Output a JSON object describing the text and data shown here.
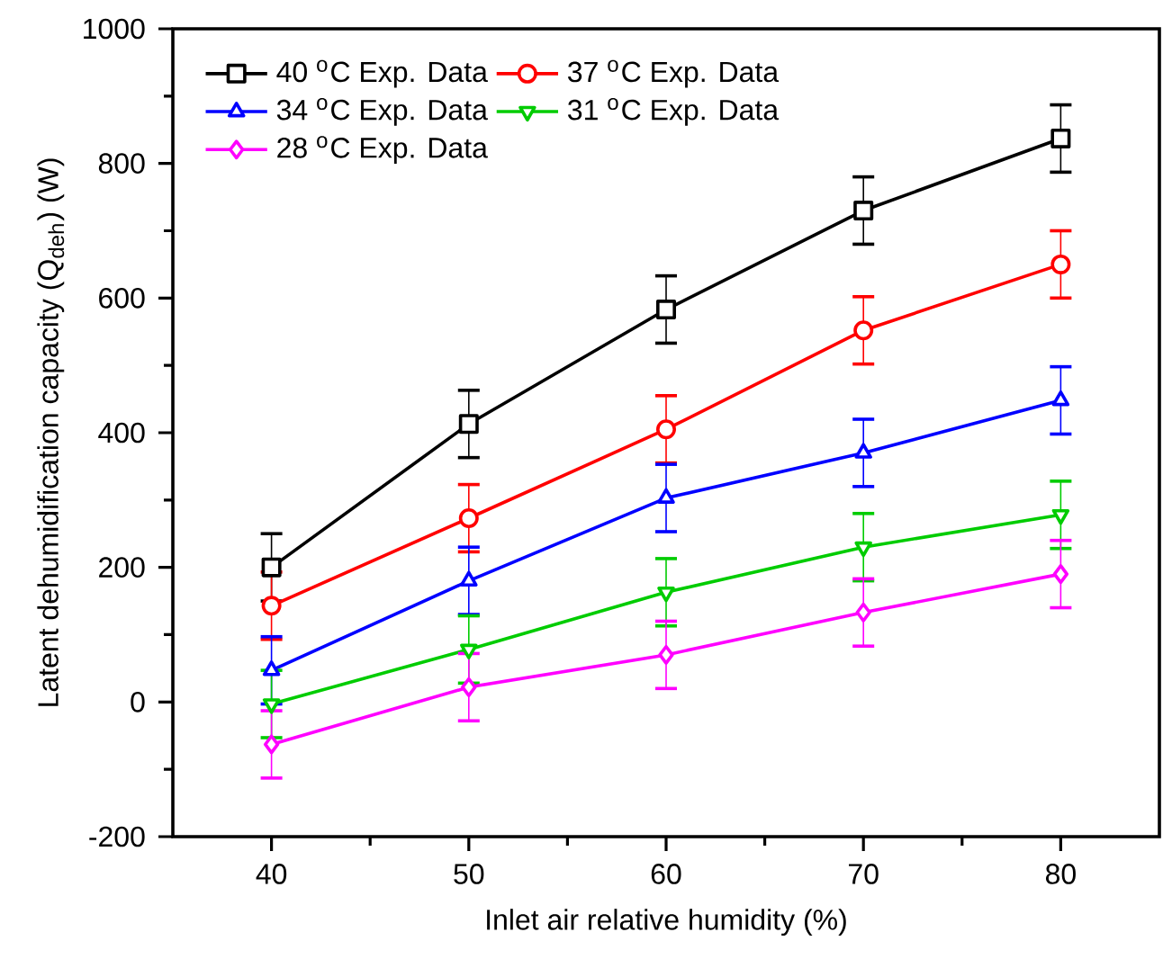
{
  "chart_data": {
    "type": "line",
    "xlabel": "Inlet air relative humidity (%)",
    "ylabel": "Latent dehumidification capacity (Q$_{deh}$) (W)",
    "x": [
      40,
      50,
      60,
      70,
      80
    ],
    "xlim": [
      35,
      85
    ],
    "xticks": [
      40,
      50,
      60,
      70,
      80
    ],
    "ylim": [
      -200,
      1000
    ],
    "yticks": [
      -200,
      0,
      200,
      400,
      600,
      800,
      1000
    ],
    "legend": "top left",
    "grid": false,
    "line_style": "solid",
    "series": [
      {
        "name": "40 $^{o}$C Exp. Data",
        "color": "#000000",
        "marker": "square",
        "values": [
          200,
          413,
          583,
          730,
          837
        ],
        "errors": [
          50,
          50,
          50,
          50,
          50
        ]
      },
      {
        "name": "37 $^{o}$C Exp. Data",
        "color": "#ff0000",
        "marker": "circle",
        "values": [
          143,
          273,
          405,
          552,
          650
        ],
        "errors": [
          50,
          50,
          50,
          50,
          50
        ]
      },
      {
        "name": "34 $^{o}$C Exp. Data",
        "color": "#0000ff",
        "marker": "triangle",
        "values": [
          47,
          180,
          303,
          370,
          448
        ],
        "errors": [
          50,
          50,
          50,
          50,
          50
        ]
      },
      {
        "name": "31 $^{o}$C Exp. Data",
        "color": "#00cc00",
        "marker": "triangle-down",
        "values": [
          -3,
          78,
          163,
          230,
          278
        ],
        "errors": [
          50,
          50,
          50,
          50,
          50
        ]
      },
      {
        "name": "28 $^{o}$C Exp. Data",
        "color": "#ff00ff",
        "marker": "diamond",
        "values": [
          -63,
          22,
          70,
          133,
          190
        ],
        "errors": [
          50,
          50,
          50,
          50,
          50
        ]
      }
    ]
  }
}
